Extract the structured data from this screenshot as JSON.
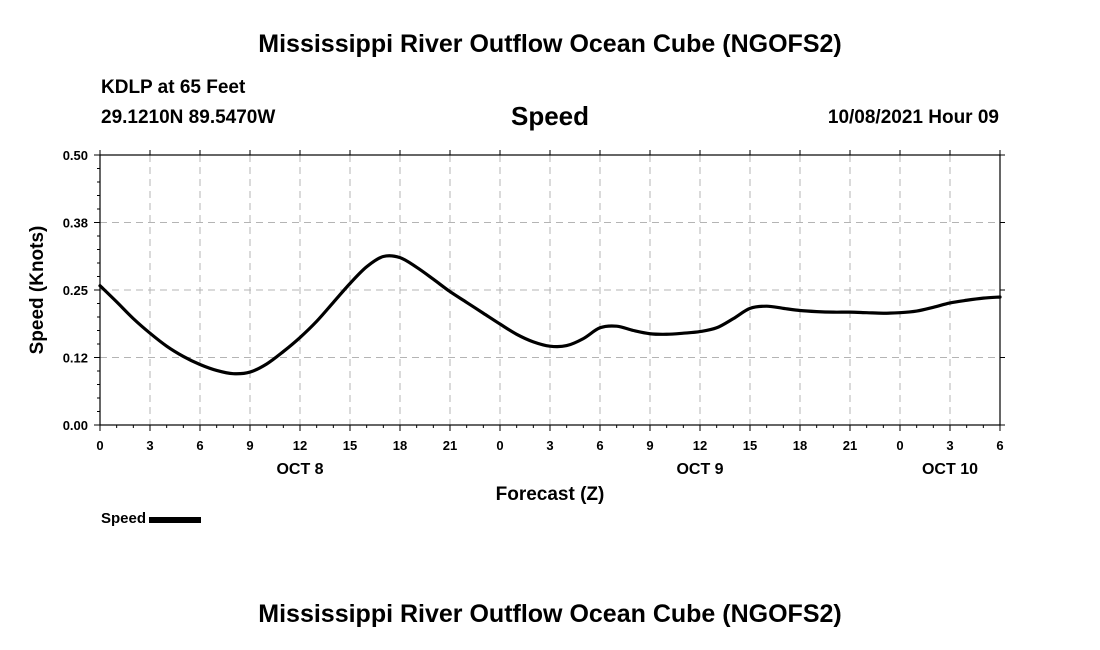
{
  "header": {
    "title": "Mississippi River Outflow Ocean Cube (NGOFS2)",
    "station": "KDLP at 65 Feet",
    "coords": "29.1210N  89.5470W",
    "parameter": "Speed",
    "datetime": "10/08/2021 Hour 09"
  },
  "footer": {
    "title": "Mississippi River Outflow Ocean Cube (NGOFS2)"
  },
  "legend": {
    "label": "Speed"
  },
  "chart_data": {
    "type": "line",
    "title": "Speed",
    "xlabel": "Forecast (Z)",
    "ylabel": "Speed (Knots)",
    "xlim": [
      0,
      54
    ],
    "ylim": [
      0.0,
      0.5
    ],
    "x_tick_values": [
      0,
      3,
      6,
      9,
      12,
      15,
      18,
      21,
      24,
      27,
      30,
      33,
      36,
      39,
      42,
      45,
      48,
      51,
      54
    ],
    "x_tick_labels": [
      "0",
      "3",
      "6",
      "9",
      "12",
      "15",
      "18",
      "21",
      "0",
      "3",
      "6",
      "9",
      "12",
      "15",
      "18",
      "21",
      "0",
      "3",
      "6"
    ],
    "y_tick_values": [
      0.0,
      0.125,
      0.25,
      0.375,
      0.5
    ],
    "y_tick_labels": [
      "0.00",
      "0.12",
      "0.25",
      "0.38",
      "0.50"
    ],
    "date_labels": [
      {
        "x": 12,
        "label": "OCT 8"
      },
      {
        "x": 36,
        "label": "OCT 9"
      },
      {
        "x": 51,
        "label": "OCT 10"
      }
    ],
    "grid": true,
    "color": "#000000",
    "series": [
      {
        "name": "Speed",
        "x": [
          0,
          1,
          2,
          3,
          4,
          5,
          6,
          7,
          8,
          9,
          10,
          11,
          12,
          13,
          14,
          15,
          16,
          17,
          18,
          19,
          20,
          21,
          22,
          23,
          24,
          25,
          26,
          27,
          28,
          29,
          30,
          31,
          32,
          33,
          34,
          35,
          36,
          37,
          38,
          39,
          40,
          41,
          42,
          43,
          44,
          45,
          46,
          47,
          48,
          49,
          50,
          51,
          52,
          53,
          54
        ],
        "values": [
          0.258,
          0.228,
          0.197,
          0.17,
          0.146,
          0.127,
          0.112,
          0.101,
          0.095,
          0.098,
          0.113,
          0.136,
          0.162,
          0.192,
          0.227,
          0.262,
          0.293,
          0.312,
          0.31,
          0.292,
          0.27,
          0.247,
          0.227,
          0.207,
          0.187,
          0.168,
          0.154,
          0.146,
          0.147,
          0.16,
          0.18,
          0.183,
          0.175,
          0.169,
          0.168,
          0.17,
          0.173,
          0.18,
          0.197,
          0.216,
          0.22,
          0.216,
          0.212,
          0.21,
          0.209,
          0.209,
          0.208,
          0.207,
          0.208,
          0.211,
          0.218,
          0.226,
          0.231,
          0.235,
          0.237
        ]
      }
    ]
  }
}
